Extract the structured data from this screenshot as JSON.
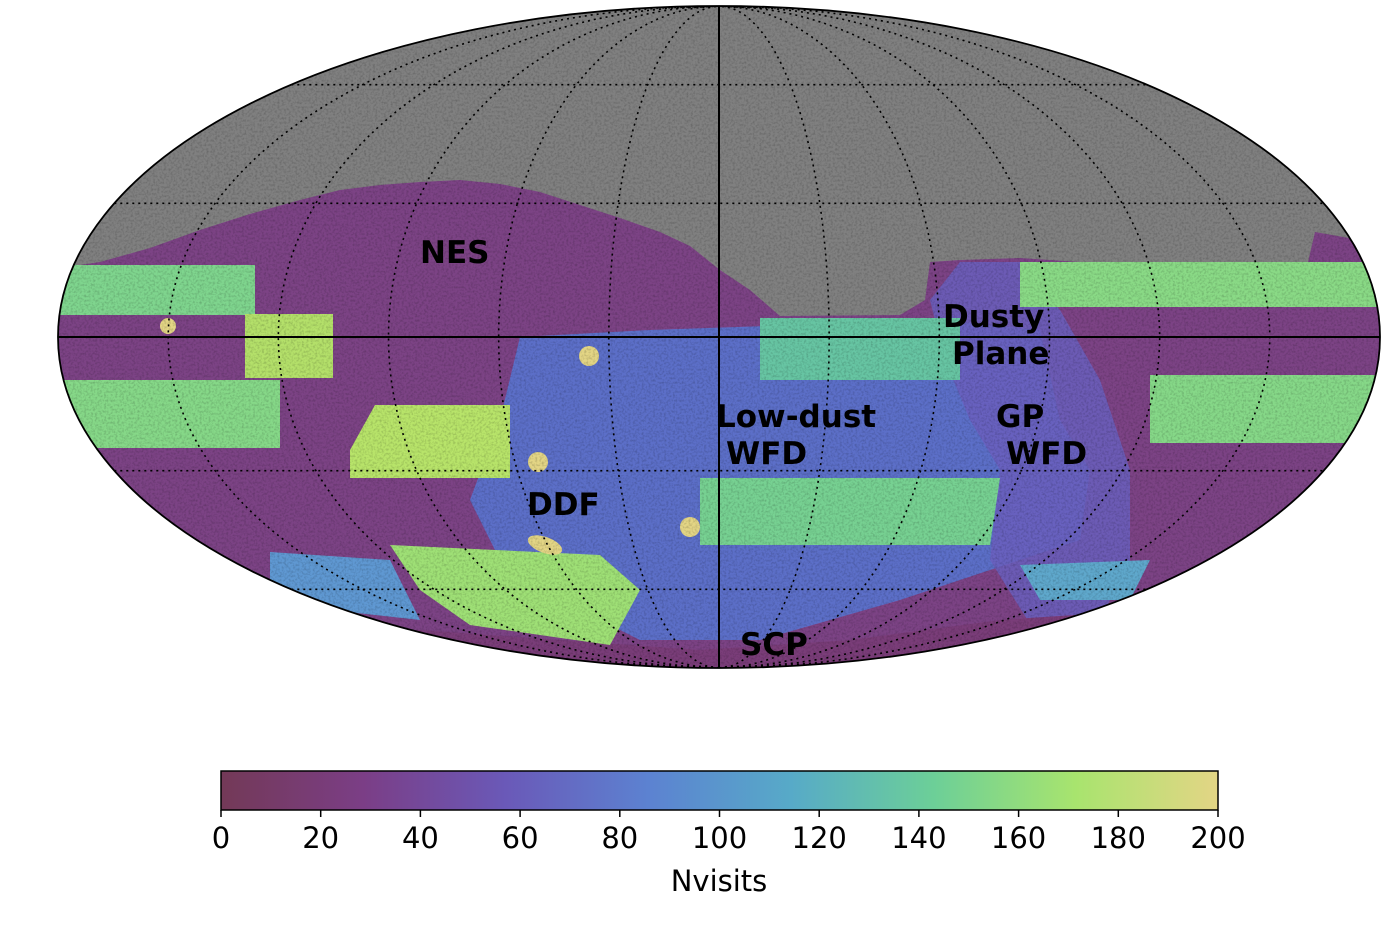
{
  "chart_data": {
    "type": "heatmap",
    "projection": "mollweide",
    "grid": true,
    "masked_color": "#808080",
    "region_labels": [
      {
        "id": "nes",
        "text": [
          "NES"
        ]
      },
      {
        "id": "dusty-plane",
        "text": [
          "Dusty",
          "Plane"
        ]
      },
      {
        "id": "low-dust-wfd",
        "text": [
          "Low-dust",
          "WFD"
        ]
      },
      {
        "id": "gp-wfd",
        "text": [
          "GP",
          "WFD"
        ]
      },
      {
        "id": "ddf",
        "text": [
          "DDF"
        ]
      },
      {
        "id": "scp",
        "text": [
          "SCP"
        ]
      }
    ],
    "colorbar": {
      "label": "Nvisits",
      "range": [
        0,
        200
      ],
      "ticks": [
        "0",
        "20",
        "40",
        "60",
        "80",
        "100",
        "120",
        "140",
        "160",
        "180",
        "200"
      ],
      "placement": "bottom",
      "colormap": [
        "#733957",
        "#7b3e86",
        "#6a59b8",
        "#5c82d1",
        "#57aac8",
        "#6ccf98",
        "#a8e46e",
        "#e3d585"
      ]
    }
  }
}
